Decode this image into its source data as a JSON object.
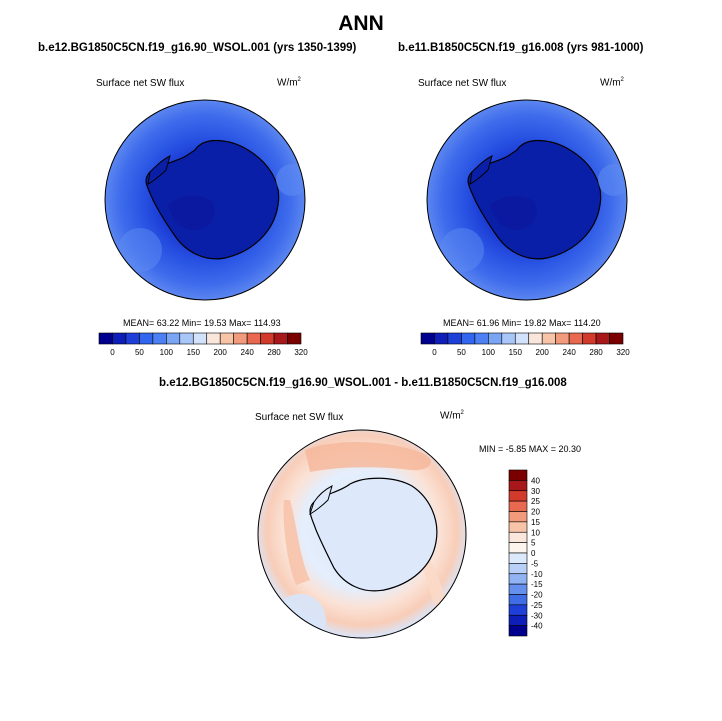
{
  "figure": {
    "title": "ANN",
    "panel_a": {
      "case": "b.e12.BG1850C5CN.f19_g16.90_WSOL.001 (yrs 1350-1399)",
      "field": "Surface net SW flux",
      "units": "W/m",
      "units_sup": "2",
      "stats": "MEAN= 63.22  Min= 19.53  Max= 114.93"
    },
    "panel_b": {
      "case": "b.e11.B1850C5CN.f19_g16.008 (yrs 981-1000)",
      "field": "Surface net SW flux",
      "units": "W/m",
      "units_sup": "2",
      "stats": "MEAN= 61.96  Min= 19.82  Max= 114.20"
    },
    "panel_diff": {
      "case": "b.e12.BG1850C5CN.f19_g16.90_WSOL.001 - b.e11.B1850C5CN.f19_g16.008",
      "field": "Surface net SW flux",
      "units": "W/m",
      "units_sup": "2",
      "stats": "MIN =  -5.85 MAX =  20.30"
    }
  },
  "chart_data": [
    {
      "type": "heatmap",
      "title": "Surface net SW flux",
      "subtitle": "b.e12.BG1850C5CN.f19_g16.90_WSOL.001 (yrs 1350-1399)",
      "units": "W/m2",
      "projection": "south-polar stereographic",
      "mean": 63.22,
      "min": 19.53,
      "max": 114.93,
      "colorbar_labels": [
        "0",
        "50",
        "100",
        "150",
        "200",
        "240",
        "280",
        "320"
      ],
      "colorbar_colors": [
        "#00008f",
        "#0d1fb8",
        "#1f3fd9",
        "#3366ee",
        "#4d80f2",
        "#7aa5f5",
        "#a8c6f8",
        "#d2e2fb",
        "#fbe6dc",
        "#f8c4a8",
        "#f29a7c",
        "#e8694f",
        "#d23a2b",
        "#a8171a",
        "#7a0000"
      ]
    },
    {
      "type": "heatmap",
      "title": "Surface net SW flux",
      "subtitle": "b.e11.B1850C5CN.f19_g16.008 (yrs 981-1000)",
      "units": "W/m2",
      "projection": "south-polar stereographic",
      "mean": 61.96,
      "min": 19.82,
      "max": 114.2,
      "colorbar_labels": [
        "0",
        "50",
        "100",
        "150",
        "200",
        "240",
        "280",
        "320"
      ],
      "colorbar_colors": [
        "#00008f",
        "#0d1fb8",
        "#1f3fd9",
        "#3366ee",
        "#4d80f2",
        "#7aa5f5",
        "#a8c6f8",
        "#d2e2fb",
        "#fbe6dc",
        "#f8c4a8",
        "#f29a7c",
        "#e8694f",
        "#d23a2b",
        "#a8171a",
        "#7a0000"
      ]
    },
    {
      "type": "heatmap",
      "title": "Surface net SW flux",
      "subtitle": "b.e12.BG1850C5CN.f19_g16.90_WSOL.001 - b.e11.B1850C5CN.f19_g16.008",
      "units": "W/m2",
      "projection": "south-polar stereographic",
      "min": -5.85,
      "max": 20.3,
      "colorbar_labels": [
        "40",
        "30",
        "25",
        "20",
        "15",
        "10",
        "5",
        "0",
        "-5",
        "-10",
        "-15",
        "-20",
        "-25",
        "-30",
        "-40"
      ],
      "colorbar_colors": [
        "#7a0000",
        "#a8171a",
        "#d23a2b",
        "#e8694f",
        "#f29a7c",
        "#f8c4a8",
        "#fbe6dc",
        "#fdf4ee",
        "#dce9fb",
        "#b8d0f7",
        "#8fb3f3",
        "#6690ee",
        "#3f6de6",
        "#1f3fd9",
        "#0d1fb8",
        "#00008f"
      ]
    }
  ]
}
